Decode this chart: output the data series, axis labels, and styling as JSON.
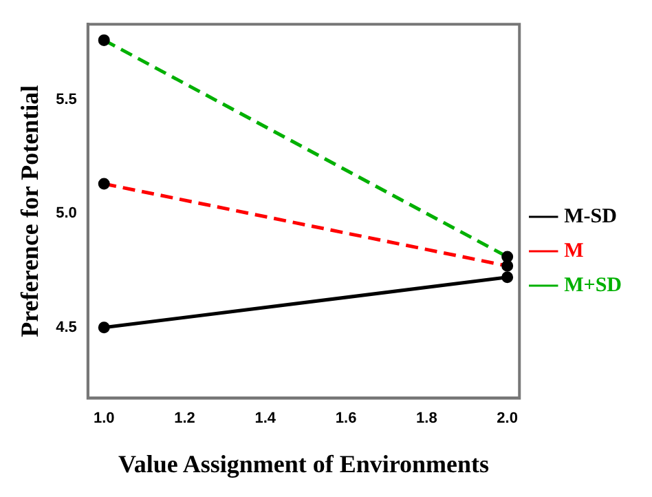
{
  "chart_data": {
    "type": "line",
    "xlabel": "Value Assignment of Environments",
    "ylabel": "Preference for Potential",
    "x": [
      1,
      2
    ],
    "series": [
      {
        "name": "M-SD",
        "color": "#000000",
        "values": [
          4.5,
          4.72
        ],
        "line_style": "solid"
      },
      {
        "name": "M",
        "color": "#ff0000",
        "values": [
          5.13,
          4.77
        ],
        "line_style": "dashed"
      },
      {
        "name": "M+SD",
        "color": "#00b000",
        "values": [
          5.76,
          4.81
        ],
        "line_style": "dashed"
      }
    ],
    "xlim": [
      0.96,
      2.03
    ],
    "xticks": [
      {
        "value": 1,
        "label": "1.0"
      },
      1.2,
      1.4,
      1.6,
      1.8,
      {
        "value": 2,
        "label": "2.0"
      }
    ],
    "ylim": [
      4.19,
      5.83
    ],
    "yticks": [
      4.5,
      {
        "value": 5,
        "label": "5.0"
      },
      5.5
    ],
    "grid": false,
    "legend": "right",
    "marker": "circle"
  }
}
